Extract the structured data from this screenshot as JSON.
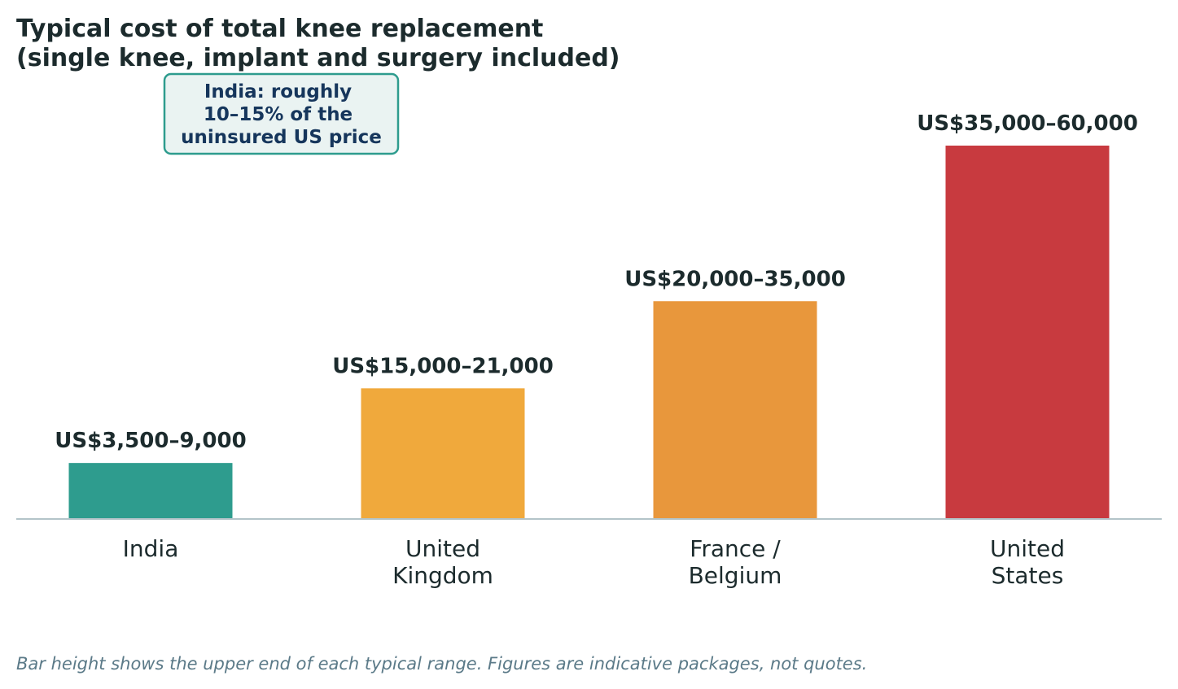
{
  "chart_data": {
    "type": "bar",
    "title": [
      "Typical cost of total knee replacement",
      "(single knee, implant and surgery included)"
    ],
    "categories": [
      [
        "India"
      ],
      [
        "United",
        "Kingdom"
      ],
      [
        "France /",
        "Belgium"
      ],
      [
        "United",
        "States"
      ]
    ],
    "values": [
      9000,
      21000,
      35000,
      60000
    ],
    "value_labels": [
      "US$3,500–9,000",
      "US$15,000–21,000",
      "US$20,000–35,000",
      "US$35,000–60,000"
    ],
    "colors": [
      "#2e9c8e",
      "#f0a93c",
      "#e8973c",
      "#c83a3f"
    ],
    "ylim": [
      0,
      60000
    ],
    "annotation": [
      "India: roughly",
      "10–15% of the",
      "uninsured US price"
    ],
    "footnote": "Bar height shows the upper end of each typical range. Figures are indicative packages, not quotes.",
    "grid": false,
    "legend": "none"
  }
}
